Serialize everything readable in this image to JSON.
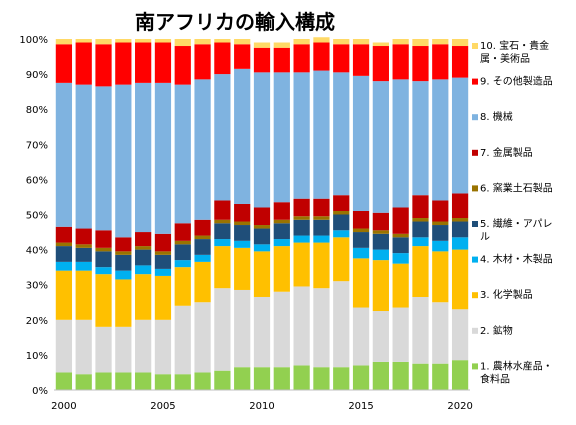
{
  "chart_data": {
    "type": "bar",
    "stacked": true,
    "title": "南アフリカの輸入構成",
    "x": [
      2000,
      2001,
      2002,
      2003,
      2004,
      2005,
      2006,
      2007,
      2008,
      2009,
      2010,
      2011,
      2012,
      2013,
      2014,
      2015,
      2016,
      2017,
      2018,
      2019,
      2020
    ],
    "x_tick_labels": [
      "2000",
      "2005",
      "2010",
      "2015",
      "2020"
    ],
    "y_tick_labels": [
      "0%",
      "10%",
      "20%",
      "30%",
      "40%",
      "50%",
      "60%",
      "70%",
      "80%",
      "90%",
      "100%"
    ],
    "ylim": [
      0,
      100
    ],
    "grid": false,
    "legend_position": "right",
    "series": [
      {
        "name": "1. 農林水産品・食料品",
        "color": "#92d050",
        "values": [
          5,
          4.5,
          5,
          5,
          5,
          4.5,
          4.5,
          5,
          5.5,
          6.5,
          6.5,
          6.5,
          7,
          6.5,
          6.5,
          7,
          8,
          8,
          7.5,
          7.5,
          8.5
        ]
      },
      {
        "name": "2. 鉱物",
        "color": "#d9d9d9",
        "values": [
          15,
          15.5,
          13,
          13,
          15,
          15.5,
          19.5,
          20,
          23.5,
          22,
          20,
          21.5,
          22.5,
          22.5,
          24.5,
          16.5,
          14.5,
          15.5,
          19,
          17.5,
          14.5
        ]
      },
      {
        "name": "3. 化学製品",
        "color": "#ffc000",
        "values": [
          14,
          14,
          15,
          13.5,
          13,
          12.5,
          11,
          11.5,
          12,
          12,
          13,
          13,
          12.5,
          13,
          12.5,
          14,
          14.5,
          12.5,
          14.5,
          14.5,
          17
        ]
      },
      {
        "name": "4. 木材・木製品",
        "color": "#00b0f0",
        "values": [
          2.5,
          2.5,
          2,
          2.5,
          2.5,
          2,
          2,
          2,
          2,
          2,
          2,
          2,
          2,
          2,
          2,
          3,
          3,
          3,
          2.5,
          3,
          3.5
        ]
      },
      {
        "name": "5. 繊維・アパレル",
        "color": "#1f4e79",
        "values": [
          4.5,
          4,
          4.5,
          4.5,
          4.5,
          4,
          4.5,
          4.5,
          4.5,
          4.5,
          4.5,
          4.5,
          4.5,
          4.5,
          4.5,
          4.5,
          4.5,
          4.5,
          4.5,
          4.5,
          4.5
        ]
      },
      {
        "name": "6. 窯業土石製品",
        "color": "#997300",
        "values": [
          1,
          1,
          1,
          1,
          1,
          1,
          1,
          1,
          1,
          1,
          1,
          1,
          1,
          1,
          1,
          1,
          1,
          1,
          1,
          1,
          1
        ]
      },
      {
        "name": "7. 金属製品",
        "color": "#c00000",
        "values": [
          4.5,
          4.5,
          5,
          4,
          4,
          5,
          5,
          4.5,
          5.5,
          5,
          5,
          5,
          5,
          5,
          4.5,
          5,
          5,
          7.5,
          6.5,
          6,
          7
        ]
      },
      {
        "name": "8. 機械",
        "color": "#7fb3e0",
        "values": [
          41,
          41,
          41,
          43.5,
          42.5,
          43,
          39.5,
          40,
          36,
          38.5,
          38.5,
          37,
          36,
          36.5,
          35,
          38.5,
          37.5,
          36.5,
          32.5,
          34.5,
          33
        ]
      },
      {
        "name": "9. その他製造品",
        "color": "#ff0000",
        "values": [
          11,
          12,
          12,
          12,
          11.5,
          11.5,
          11,
          10,
          9,
          7,
          7,
          7,
          8,
          8,
          8,
          9,
          10,
          10,
          10,
          10,
          9
        ]
      },
      {
        "name": "10. 宝石・貴金属・美術品",
        "color": "#ffd966",
        "values": [
          1.5,
          1,
          1.5,
          1,
          1,
          1,
          2,
          1.5,
          1,
          1.5,
          1.5,
          1.5,
          1.5,
          1.5,
          1.5,
          1.5,
          1,
          1.5,
          2,
          1.5,
          2
        ]
      }
    ]
  }
}
